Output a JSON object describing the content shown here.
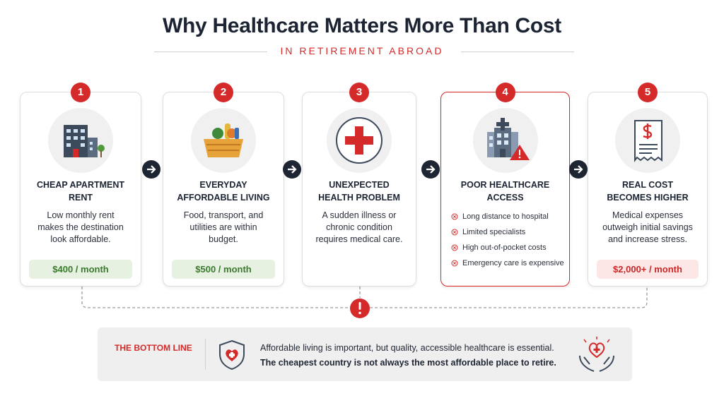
{
  "header": {
    "title": "Why Healthcare Matters More Than Cost",
    "subtitle": "IN RETIREMENT ABROAD"
  },
  "steps": [
    {
      "number": "1",
      "title": "CHEAP APARTMENT RENT",
      "text": "Low monthly rent makes the destination look affordable.",
      "price": "$400 / month"
    },
    {
      "number": "2",
      "title": "EVERYDAY AFFORDABLE LIVING",
      "text": "Food, transport, and utilities are within budget.",
      "price": "$500 / month"
    },
    {
      "number": "3",
      "title": "UNEXPECTED HEALTH PROBLEM",
      "text": "A sudden illness or chronic condition requires medical care."
    },
    {
      "number": "4",
      "title": "POOR HEALTHCARE ACCESS",
      "bullets": [
        "Long distance to hospital",
        "Limited specialists",
        "High out-of-pocket costs",
        "Emergency care is expensive"
      ]
    },
    {
      "number": "5",
      "title": "REAL COST BECOMES HIGHER",
      "text": "Medical expenses outweigh initial savings and increase stress.",
      "price": "$2,000+ / month"
    }
  ],
  "bottom_line": {
    "label": "THE BOTTOM LINE",
    "line1": "Affordable living is important, but quality, accessible healthcare is essential.",
    "line2": "The cheapest country is not always the most affordable place to retire."
  }
}
